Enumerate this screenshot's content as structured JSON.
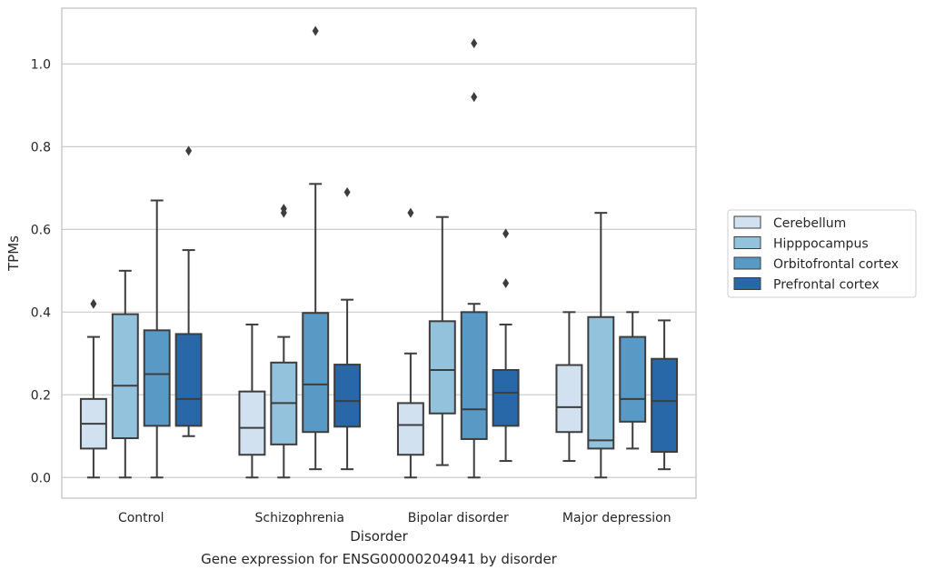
{
  "caption": "Gene expression for ENSG00000204941 by disorder",
  "chart_data": {
    "type": "box",
    "xlabel": "Disorder",
    "ylabel": "TPMs",
    "ylim": [
      -0.05,
      1.135
    ],
    "yticks": [
      0.0,
      0.2,
      0.4,
      0.6,
      0.8,
      1.0
    ],
    "grid": "horizontal",
    "legend_position": "right",
    "categories": [
      "Control",
      "Schizophrenia",
      "Bipolar disorder",
      "Major depression"
    ],
    "series": [
      {
        "name": "Cerebellum",
        "color": "#d1e1f0",
        "boxes": [
          {
            "whislo": 0.0,
            "q1": 0.07,
            "med": 0.13,
            "q3": 0.19,
            "whishi": 0.34,
            "fliers": [
              0.42
            ]
          },
          {
            "whislo": 0.0,
            "q1": 0.055,
            "med": 0.12,
            "q3": 0.208,
            "whishi": 0.37,
            "fliers": []
          },
          {
            "whislo": 0.0,
            "q1": 0.055,
            "med": 0.127,
            "q3": 0.18,
            "whishi": 0.3,
            "fliers": [
              0.64
            ]
          },
          {
            "whislo": 0.04,
            "q1": 0.11,
            "med": 0.17,
            "q3": 0.272,
            "whishi": 0.4,
            "fliers": []
          }
        ]
      },
      {
        "name": "Hipppocampus",
        "color": "#93c2dc",
        "boxes": [
          {
            "whislo": 0.0,
            "q1": 0.095,
            "med": 0.222,
            "q3": 0.395,
            "whishi": 0.5,
            "fliers": []
          },
          {
            "whislo": 0.0,
            "q1": 0.08,
            "med": 0.18,
            "q3": 0.278,
            "whishi": 0.34,
            "fliers": [
              0.64,
              0.65
            ]
          },
          {
            "whislo": 0.03,
            "q1": 0.155,
            "med": 0.26,
            "q3": 0.378,
            "whishi": 0.63,
            "fliers": []
          },
          {
            "whislo": 0.0,
            "q1": 0.07,
            "med": 0.09,
            "q3": 0.388,
            "whishi": 0.64,
            "fliers": []
          }
        ]
      },
      {
        "name": "Orbitofrontal cortex",
        "color": "#5999c5",
        "boxes": [
          {
            "whislo": 0.0,
            "q1": 0.125,
            "med": 0.25,
            "q3": 0.356,
            "whishi": 0.67,
            "fliers": []
          },
          {
            "whislo": 0.02,
            "q1": 0.11,
            "med": 0.225,
            "q3": 0.398,
            "whishi": 0.71,
            "fliers": [
              1.08
            ]
          },
          {
            "whislo": 0.0,
            "q1": 0.093,
            "med": 0.165,
            "q3": 0.4,
            "whishi": 0.42,
            "fliers": [
              0.92,
              1.05
            ]
          },
          {
            "whislo": 0.07,
            "q1": 0.135,
            "med": 0.19,
            "q3": 0.34,
            "whishi": 0.4,
            "fliers": []
          }
        ]
      },
      {
        "name": "Prefrontal cortex",
        "color": "#2867a8",
        "boxes": [
          {
            "whislo": 0.1,
            "q1": 0.125,
            "med": 0.19,
            "q3": 0.347,
            "whishi": 0.55,
            "fliers": [
              0.79
            ]
          },
          {
            "whislo": 0.02,
            "q1": 0.123,
            "med": 0.185,
            "q3": 0.273,
            "whishi": 0.43,
            "fliers": [
              0.69
            ]
          },
          {
            "whislo": 0.04,
            "q1": 0.125,
            "med": 0.205,
            "q3": 0.26,
            "whishi": 0.37,
            "fliers": [
              0.47,
              0.59
            ]
          },
          {
            "whislo": 0.02,
            "q1": 0.062,
            "med": 0.185,
            "q3": 0.287,
            "whishi": 0.38,
            "fliers": []
          }
        ]
      }
    ]
  }
}
